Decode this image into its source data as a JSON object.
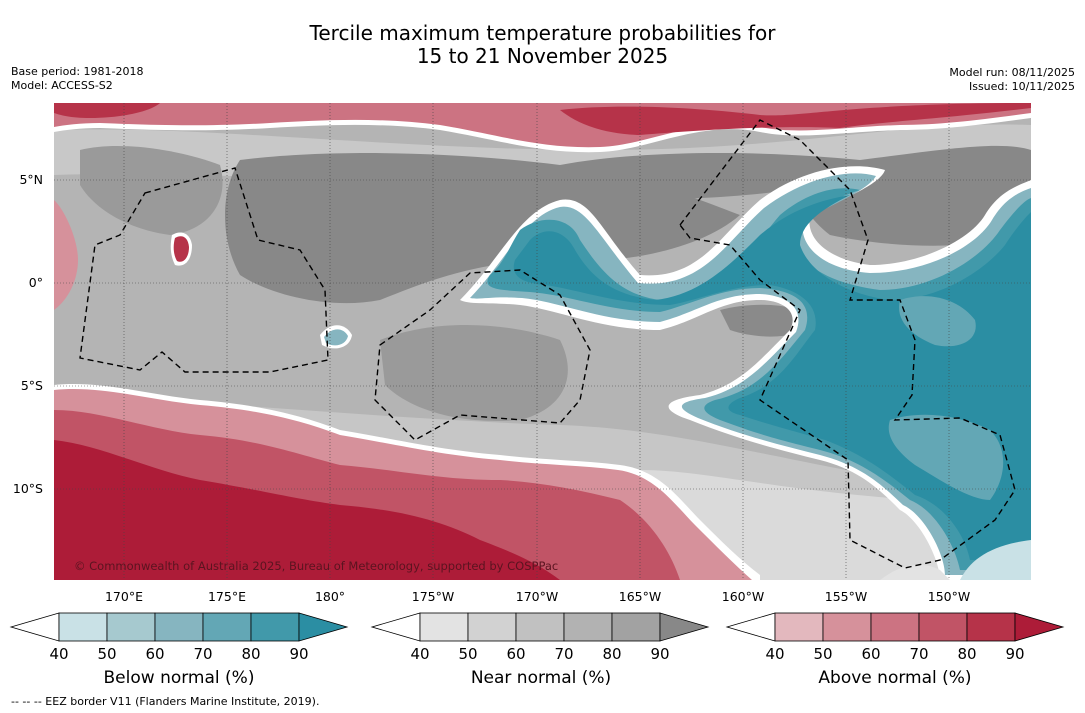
{
  "header": {
    "title_line1": "Tercile maximum temperature probabilities for",
    "title_line2": "15 to 21 November 2025",
    "base_period": "Base period: 1981-2018",
    "model": "Model: ACCESS-S2",
    "model_run": "Model run: 08/11/2025",
    "issued": "Issued: 10/11/2025"
  },
  "map": {
    "lat_labels": [
      "5°N",
      "0°",
      "5°S",
      "10°S"
    ],
    "lon_labels": [
      "170°E",
      "175°E",
      "180°",
      "175°W",
      "170°W",
      "165°W",
      "160°W",
      "155°W",
      "150°W"
    ],
    "copyright": "© Commonwealth of Australia 2025, Bureau of Meteorology, supported by COSPPac"
  },
  "colorbars": [
    {
      "name": "below",
      "title": "Below normal (%)",
      "ticks": [
        "40",
        "50",
        "60",
        "70",
        "80",
        "90"
      ],
      "colors": [
        "#c9e1e6",
        "#a6c9cf",
        "#86b5c0",
        "#63a7b5",
        "#4199aa",
        "#2b8ea3"
      ]
    },
    {
      "name": "near",
      "title": "Near normal (%)",
      "ticks": [
        "40",
        "50",
        "60",
        "70",
        "80",
        "90"
      ],
      "colors": [
        "#e3e3e3",
        "#d2d2d2",
        "#c1c1c1",
        "#b2b2b2",
        "#a2a2a2",
        "#888888"
      ]
    },
    {
      "name": "above",
      "title": "Above normal (%)",
      "ticks": [
        "40",
        "50",
        "60",
        "70",
        "80",
        "90"
      ],
      "colors": [
        "#e3b8be",
        "#d6919b",
        "#cc7382",
        "#c15466",
        "#b63349",
        "#ad1c38"
      ]
    }
  ],
  "footnote": "--  --  -- EEZ border V11 (Flanders Marine Institute, 2019)."
}
